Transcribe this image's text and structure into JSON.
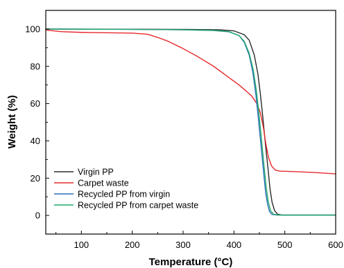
{
  "chart_data": {
    "type": "line",
    "title": "",
    "xlabel": "Temperature (°C)",
    "ylabel": "Weight (%)",
    "xlim": [
      30,
      600
    ],
    "ylim": [
      -10,
      110
    ],
    "xticks": [
      100,
      200,
      300,
      400,
      500,
      600
    ],
    "yticks": [
      0,
      20,
      40,
      60,
      80,
      100
    ],
    "grid": false,
    "legend_position": "bottom-left",
    "series": [
      {
        "name": "Virgin PP",
        "color": "#2b2b2b",
        "points": [
          [
            30,
            100
          ],
          [
            200,
            99.9
          ],
          [
            300,
            99.8
          ],
          [
            370,
            99.6
          ],
          [
            400,
            99
          ],
          [
            420,
            97
          ],
          [
            430,
            94
          ],
          [
            440,
            86
          ],
          [
            447,
            76
          ],
          [
            452,
            65
          ],
          [
            457,
            52
          ],
          [
            462,
            38
          ],
          [
            467,
            25
          ],
          [
            471,
            14
          ],
          [
            475,
            7
          ],
          [
            480,
            2.5
          ],
          [
            486,
            0.6
          ],
          [
            495,
            0.2
          ],
          [
            600,
            0.2
          ]
        ]
      },
      {
        "name": "Carpet waste",
        "color": "#e8282b",
        "points": [
          [
            30,
            99.5
          ],
          [
            60,
            98.6
          ],
          [
            100,
            98.2
          ],
          [
            150,
            98
          ],
          [
            200,
            97.8
          ],
          [
            230,
            97.2
          ],
          [
            250,
            95.5
          ],
          [
            270,
            93.5
          ],
          [
            300,
            89.5
          ],
          [
            330,
            85
          ],
          [
            360,
            80
          ],
          [
            390,
            74
          ],
          [
            410,
            70
          ],
          [
            425,
            66.5
          ],
          [
            435,
            64
          ],
          [
            445,
            60
          ],
          [
            452,
            55
          ],
          [
            458,
            47
          ],
          [
            463,
            38
          ],
          [
            468,
            31
          ],
          [
            474,
            26.5
          ],
          [
            482,
            24.2
          ],
          [
            490,
            23.8
          ],
          [
            520,
            23.5
          ],
          [
            560,
            23
          ],
          [
            600,
            22.3
          ]
        ]
      },
      {
        "name": "Recycled PP from virgin",
        "color": "#2a6fb8",
        "points": [
          [
            30,
            100
          ],
          [
            200,
            99.8
          ],
          [
            300,
            99.6
          ],
          [
            360,
            99.2
          ],
          [
            390,
            98.5
          ],
          [
            410,
            96.5
          ],
          [
            420,
            93
          ],
          [
            430,
            86
          ],
          [
            437,
            77
          ],
          [
            443,
            65
          ],
          [
            448,
            52
          ],
          [
            453,
            38
          ],
          [
            458,
            24
          ],
          [
            462,
            13
          ],
          [
            466,
            6
          ],
          [
            470,
            2
          ],
          [
            475,
            0.5
          ],
          [
            485,
            0.2
          ],
          [
            600,
            0.2
          ]
        ]
      },
      {
        "name": "Recycled PP from carpet waste",
        "color": "#1fa86a",
        "points": [
          [
            30,
            100
          ],
          [
            200,
            99.8
          ],
          [
            300,
            99.6
          ],
          [
            360,
            99.3
          ],
          [
            390,
            98.6
          ],
          [
            410,
            96.5
          ],
          [
            420,
            93.5
          ],
          [
            430,
            87
          ],
          [
            438,
            78
          ],
          [
            444,
            67
          ],
          [
            449,
            55
          ],
          [
            454,
            41
          ],
          [
            459,
            27
          ],
          [
            463,
            16
          ],
          [
            467,
            8
          ],
          [
            472,
            2.5
          ],
          [
            478,
            0.6
          ],
          [
            488,
            0.2
          ],
          [
            600,
            0.2
          ]
        ]
      }
    ]
  }
}
